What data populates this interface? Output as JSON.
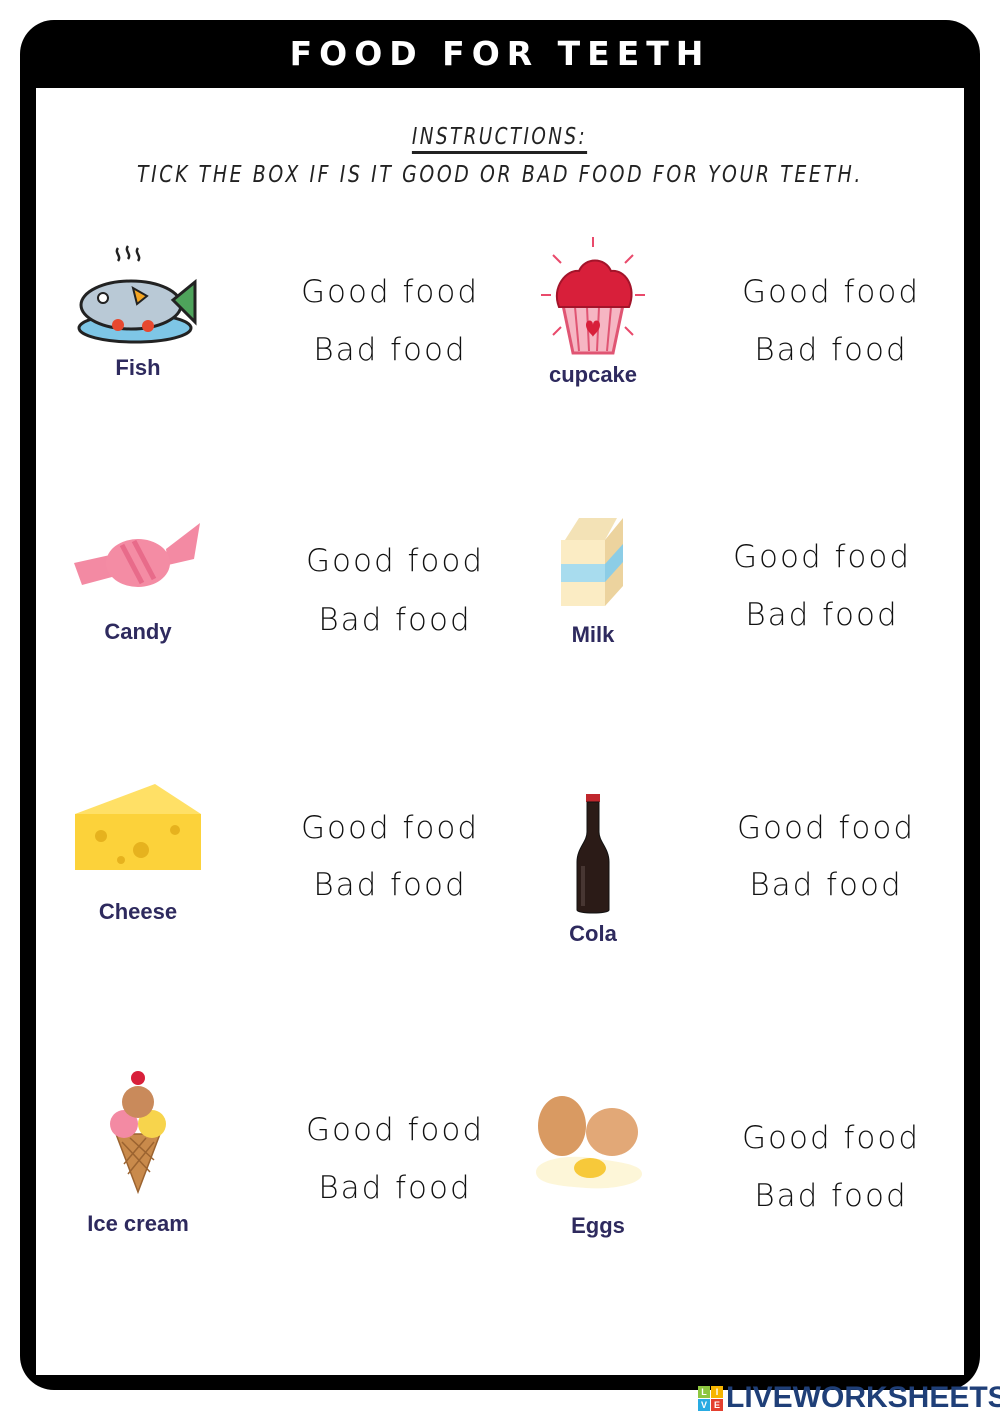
{
  "title": "FOOD FOR TEETH",
  "instructions_heading": "INSTRUCTIONS:",
  "instructions_text": "TICK THE BOX IF IS IT GOOD OR BAD FOOD FOR YOUR TEETH.",
  "items": [
    {
      "name": "Fish",
      "good": "Good food",
      "bad": "Bad food",
      "icon": "fish-icon"
    },
    {
      "name": "cupcake",
      "good": "Good food",
      "bad": "Bad food",
      "icon": "cupcake-icon"
    },
    {
      "name": "Candy",
      "good": "Good food",
      "bad": "Bad food",
      "icon": "candy-icon"
    },
    {
      "name": "Milk",
      "good": "Good food",
      "bad": "Bad food",
      "icon": "milk-icon"
    },
    {
      "name": "Cheese",
      "good": "Good food",
      "bad": "Bad food",
      "icon": "cheese-icon"
    },
    {
      "name": "Cola",
      "good": "Good food",
      "bad": "Bad food",
      "icon": "cola-icon"
    },
    {
      "name": "Ice cream",
      "good": "Good food",
      "bad": "Bad food",
      "icon": "ice-cream-icon"
    },
    {
      "name": "Eggs",
      "good": "Good food",
      "bad": "Bad food",
      "icon": "eggs-icon"
    }
  ],
  "logo": {
    "text": "LIVEWORKSHEETS",
    "badge": "LIVE",
    "colors": [
      "#8dc63f",
      "#f7b500",
      "#29abe2",
      "#e4402f"
    ]
  },
  "label_color": "#2e2a5e"
}
